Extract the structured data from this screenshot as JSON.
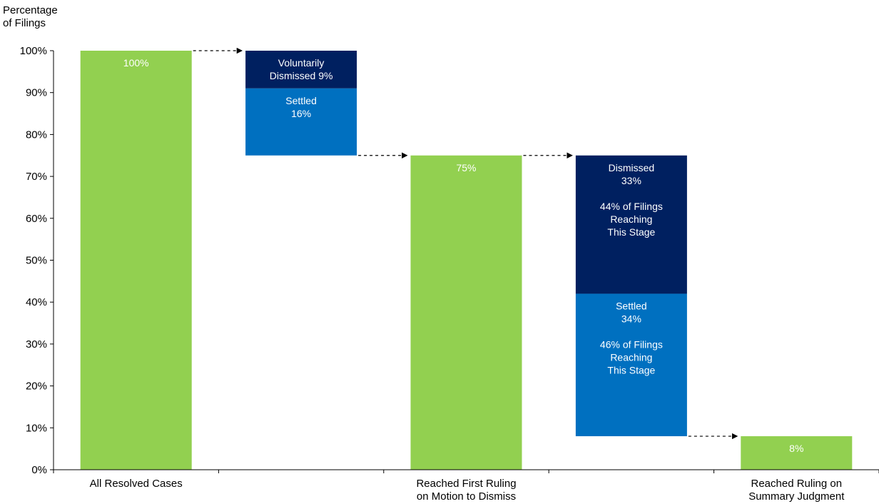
{
  "chart_data": {
    "type": "bar",
    "subtype": "waterfall",
    "ylabel_lines": [
      "Percentage",
      "of Filings"
    ],
    "ylim": [
      0,
      100
    ],
    "yticks": [
      "0%",
      "10%",
      "20%",
      "30%",
      "40%",
      "50%",
      "60%",
      "70%",
      "80%",
      "90%",
      "100%"
    ],
    "categories": [
      [
        "All Resolved Cases"
      ],
      [],
      [
        "Reached First Ruling",
        "on Motion to Dismiss"
      ],
      [],
      [
        "Reached Ruling on",
        "Summary Judgment"
      ]
    ],
    "colors": {
      "total": "#92d050",
      "dismissed": "#002060",
      "settled": "#0070c0"
    },
    "bars": [
      {
        "id": "all-resolved",
        "slot": 0,
        "bottom": 0,
        "top": 100,
        "color_key": "total",
        "label_lines": [
          "100%"
        ]
      },
      {
        "id": "voluntarily-dismissed",
        "slot": 1,
        "bottom": 91,
        "top": 100,
        "color_key": "dismissed",
        "label_lines": [
          "Voluntarily",
          "Dismissed 9%"
        ]
      },
      {
        "id": "settled-early",
        "slot": 1,
        "bottom": 75,
        "top": 91,
        "color_key": "settled",
        "label_lines": [
          "Settled",
          "16%"
        ]
      },
      {
        "id": "first-ruling",
        "slot": 2,
        "bottom": 0,
        "top": 75,
        "color_key": "total",
        "label_lines": [
          "75%"
        ]
      },
      {
        "id": "dismissed-mtd",
        "slot": 3,
        "bottom": 42,
        "top": 75,
        "color_key": "dismissed",
        "label_lines": [
          "Dismissed",
          "33%",
          "",
          "44% of Filings",
          "Reaching",
          "This Stage"
        ]
      },
      {
        "id": "settled-mtd",
        "slot": 3,
        "bottom": 8,
        "top": 42,
        "color_key": "settled",
        "label_lines": [
          "Settled",
          "34%",
          "",
          "46% of Filings",
          "Reaching",
          "This Stage"
        ]
      },
      {
        "id": "summary-judgment",
        "slot": 4,
        "bottom": 0,
        "top": 8,
        "color_key": "total",
        "label_lines": [
          "8%"
        ]
      }
    ],
    "connectors": [
      {
        "from_slot": 0,
        "to_slot": 1,
        "value": 100
      },
      {
        "from_slot": 1,
        "to_slot": 2,
        "value": 75
      },
      {
        "from_slot": 2,
        "to_slot": 3,
        "value": 75
      },
      {
        "from_slot": 3,
        "to_slot": 4,
        "value": 8
      }
    ],
    "grid": false,
    "legend": "none"
  }
}
